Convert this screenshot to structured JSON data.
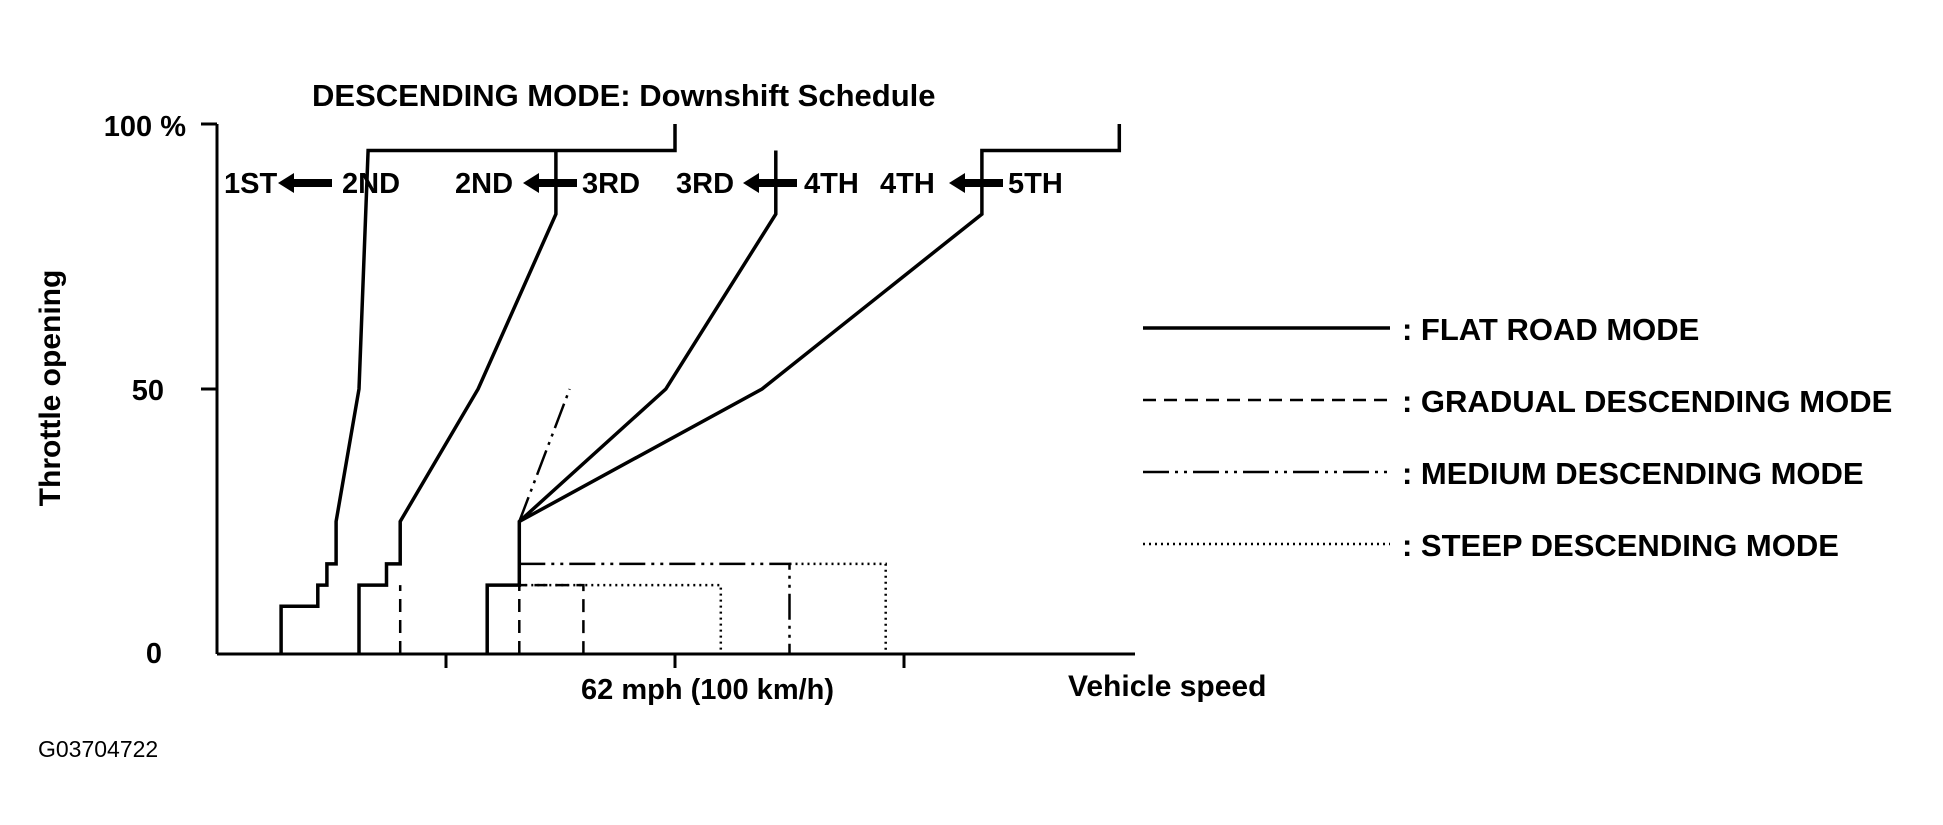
{
  "figure_code": "G03704722",
  "chart_data": {
    "type": "line",
    "title": "DESCENDING MODE: Downshift Schedule",
    "xlabel": "Vehicle speed",
    "ylabel": "Throttle opening",
    "x_ticks": [
      {
        "x": 50,
        "label": ""
      },
      {
        "x": 100,
        "label": "62 mph (100 km/h)"
      },
      {
        "x": 150,
        "label": ""
      }
    ],
    "y_ticks": [
      {
        "y": 0,
        "label": "0"
      },
      {
        "y": 50,
        "label": "50"
      },
      {
        "y": 100,
        "label": "100 %"
      }
    ],
    "xlim": [
      0,
      200
    ],
    "ylim": [
      0,
      100
    ],
    "shift_labels": [
      {
        "from": "2ND",
        "to": "1ST"
      },
      {
        "from": "3RD",
        "to": "2ND"
      },
      {
        "from": "4TH",
        "to": "3RD"
      },
      {
        "from": "5TH",
        "to": "4TH"
      }
    ],
    "legend": [
      {
        "style": "solid",
        "label": ": FLAT ROAD MODE"
      },
      {
        "style": "dashed",
        "label": ": GRADUAL DESCENDING MODE"
      },
      {
        "style": "dashdotdot",
        "label": ": MEDIUM DESCENDING MODE"
      },
      {
        "style": "dotted",
        "label": ": STEEP DESCENDING MODE"
      }
    ],
    "series": [
      {
        "mode": "flat",
        "style": "solid",
        "shift": "2ND→1ST",
        "points": [
          [
            14,
            0
          ],
          [
            14,
            9
          ],
          [
            22,
            9
          ],
          [
            22,
            13
          ],
          [
            24,
            13
          ],
          [
            24,
            17
          ],
          [
            26,
            17
          ],
          [
            26,
            25
          ],
          [
            31,
            50
          ],
          [
            33,
            95
          ],
          [
            100,
            95
          ],
          [
            100,
            100
          ]
        ]
      },
      {
        "mode": "flat",
        "style": "solid",
        "shift": "3RD→2ND",
        "points": [
          [
            31,
            0
          ],
          [
            31,
            13
          ],
          [
            37,
            13
          ],
          [
            37,
            17
          ],
          [
            40,
            17
          ],
          [
            40,
            25
          ],
          [
            57,
            50
          ],
          [
            74,
            83
          ],
          [
            74,
            95
          ]
        ]
      },
      {
        "mode": "flat",
        "style": "solid",
        "shift": "4TH→3RD",
        "points": [
          [
            59,
            0
          ],
          [
            59,
            13
          ],
          [
            66,
            13
          ],
          [
            66,
            25
          ],
          [
            98,
            50
          ],
          [
            122,
            83
          ],
          [
            122,
            95
          ]
        ]
      },
      {
        "mode": "flat",
        "style": "solid",
        "shift": "5TH→4TH",
        "points": [
          [
            66,
            25
          ],
          [
            119,
            50
          ],
          [
            167,
            83
          ],
          [
            167,
            95
          ],
          [
            197,
            95
          ],
          [
            197,
            100
          ]
        ]
      },
      {
        "mode": "gradual",
        "style": "dashed",
        "points": [
          [
            40,
            0
          ],
          [
            40,
            13
          ]
        ]
      },
      {
        "mode": "gradual",
        "style": "dashed",
        "points": [
          [
            66,
            0
          ],
          [
            66,
            13
          ],
          [
            80,
            13
          ],
          [
            80,
            0
          ]
        ]
      },
      {
        "mode": "medium",
        "style": "dashdotdot",
        "points": [
          [
            66,
            25
          ],
          [
            77,
            50
          ]
        ]
      },
      {
        "mode": "medium",
        "style": "dashdotdot",
        "points": [
          [
            66,
            17
          ],
          [
            125,
            17
          ],
          [
            125,
            0
          ]
        ]
      },
      {
        "mode": "steep",
        "style": "dotted",
        "points": [
          [
            66,
            13
          ],
          [
            110,
            13
          ],
          [
            110,
            0
          ]
        ]
      },
      {
        "mode": "steep",
        "style": "dotted",
        "points": [
          [
            125,
            17
          ],
          [
            146,
            17
          ],
          [
            146,
            0
          ]
        ]
      }
    ],
    "grid": false
  }
}
